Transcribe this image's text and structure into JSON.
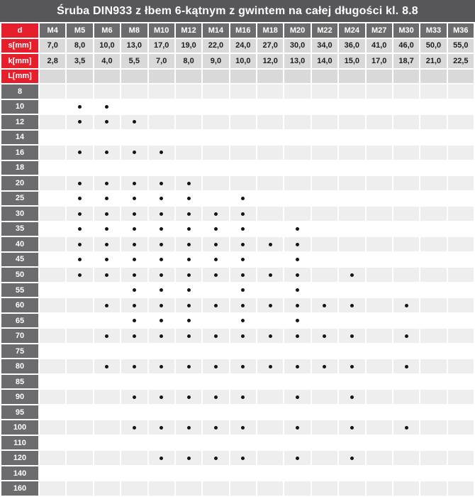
{
  "chart_data": {
    "type": "table",
    "title": "Śruba DIN933 z łbem 6-kątnym z gwintem na całej długości kl. 8.8",
    "corner_label": "d",
    "columns": [
      "M4",
      "M5",
      "M6",
      "M8",
      "M10",
      "M12",
      "M14",
      "M16",
      "M18",
      "M20",
      "M22",
      "M24",
      "M27",
      "M30",
      "M33",
      "M36"
    ],
    "s_row": {
      "label": "s[mm]",
      "values": [
        "7,0",
        "8,0",
        "10,0",
        "13,0",
        "17,0",
        "19,0",
        "22,0",
        "24,0",
        "27,0",
        "30,0",
        "34,0",
        "36,0",
        "41,0",
        "46,0",
        "50,0",
        "55,0"
      ]
    },
    "k_row": {
      "label": "k[mm]",
      "values": [
        "2,8",
        "3,5",
        "4,0",
        "5,5",
        "7,0",
        "8,0",
        "9,0",
        "10,0",
        "12,0",
        "13,0",
        "14,0",
        "15,0",
        "17,0",
        "18,7",
        "21,0",
        "22,5"
      ]
    },
    "length_header_label": "L[mm]",
    "lengths": [
      "8",
      "10",
      "12",
      "14",
      "16",
      "18",
      "20",
      "25",
      "30",
      "35",
      "40",
      "45",
      "50",
      "55",
      "60",
      "65",
      "70",
      "75",
      "80",
      "85",
      "90",
      "95",
      "100",
      "110",
      "120",
      "140",
      "160"
    ],
    "availability": [
      [
        0,
        0,
        0,
        0,
        0,
        0,
        0,
        0,
        0,
        0,
        0,
        0,
        0,
        0,
        0,
        0
      ],
      [
        0,
        1,
        1,
        0,
        0,
        0,
        0,
        0,
        0,
        0,
        0,
        0,
        0,
        0,
        0,
        0
      ],
      [
        0,
        1,
        1,
        1,
        0,
        0,
        0,
        0,
        0,
        0,
        0,
        0,
        0,
        0,
        0,
        0
      ],
      [
        0,
        0,
        0,
        0,
        0,
        0,
        0,
        0,
        0,
        0,
        0,
        0,
        0,
        0,
        0,
        0
      ],
      [
        0,
        1,
        1,
        1,
        1,
        0,
        0,
        0,
        0,
        0,
        0,
        0,
        0,
        0,
        0,
        0
      ],
      [
        0,
        0,
        0,
        0,
        0,
        0,
        0,
        0,
        0,
        0,
        0,
        0,
        0,
        0,
        0,
        0
      ],
      [
        0,
        1,
        1,
        1,
        1,
        1,
        0,
        0,
        0,
        0,
        0,
        0,
        0,
        0,
        0,
        0
      ],
      [
        0,
        1,
        1,
        1,
        1,
        1,
        0,
        1,
        0,
        0,
        0,
        0,
        0,
        0,
        0,
        0
      ],
      [
        0,
        1,
        1,
        1,
        1,
        1,
        1,
        1,
        0,
        0,
        0,
        0,
        0,
        0,
        0,
        0
      ],
      [
        0,
        1,
        1,
        1,
        1,
        1,
        1,
        1,
        0,
        1,
        0,
        0,
        0,
        0,
        0,
        0
      ],
      [
        0,
        1,
        1,
        1,
        1,
        1,
        1,
        1,
        1,
        1,
        0,
        0,
        0,
        0,
        0,
        0
      ],
      [
        0,
        1,
        1,
        1,
        1,
        1,
        1,
        1,
        0,
        1,
        0,
        0,
        0,
        0,
        0,
        0
      ],
      [
        0,
        1,
        1,
        1,
        1,
        1,
        1,
        1,
        1,
        1,
        0,
        1,
        0,
        0,
        0,
        0
      ],
      [
        0,
        0,
        0,
        1,
        1,
        1,
        0,
        1,
        0,
        1,
        0,
        0,
        0,
        0,
        0,
        0
      ],
      [
        0,
        0,
        1,
        1,
        1,
        1,
        1,
        1,
        1,
        1,
        1,
        1,
        0,
        1,
        0,
        0
      ],
      [
        0,
        0,
        0,
        1,
        1,
        1,
        0,
        1,
        0,
        1,
        0,
        0,
        0,
        0,
        0,
        0
      ],
      [
        0,
        0,
        1,
        1,
        1,
        1,
        1,
        1,
        1,
        1,
        1,
        1,
        0,
        1,
        0,
        0
      ],
      [
        0,
        0,
        0,
        0,
        0,
        0,
        0,
        0,
        0,
        0,
        0,
        0,
        0,
        0,
        0,
        0
      ],
      [
        0,
        0,
        1,
        1,
        1,
        1,
        1,
        1,
        1,
        1,
        1,
        1,
        0,
        1,
        0,
        0
      ],
      [
        0,
        0,
        0,
        0,
        0,
        0,
        0,
        0,
        0,
        0,
        0,
        0,
        0,
        0,
        0,
        0
      ],
      [
        0,
        0,
        0,
        1,
        1,
        1,
        1,
        1,
        0,
        1,
        0,
        1,
        0,
        0,
        0,
        0
      ],
      [
        0,
        0,
        0,
        0,
        0,
        0,
        0,
        0,
        0,
        0,
        0,
        0,
        0,
        0,
        0,
        0
      ],
      [
        0,
        0,
        0,
        1,
        1,
        1,
        1,
        1,
        0,
        1,
        0,
        1,
        0,
        1,
        0,
        0
      ],
      [
        0,
        0,
        0,
        0,
        0,
        0,
        0,
        0,
        0,
        0,
        0,
        0,
        0,
        0,
        0,
        0
      ],
      [
        0,
        0,
        0,
        0,
        1,
        1,
        1,
        1,
        0,
        1,
        0,
        1,
        0,
        0,
        0,
        0
      ],
      [
        0,
        0,
        0,
        0,
        0,
        0,
        0,
        0,
        0,
        0,
        0,
        0,
        0,
        0,
        0,
        0
      ],
      [
        0,
        0,
        0,
        0,
        0,
        0,
        0,
        0,
        0,
        0,
        0,
        0,
        0,
        0,
        0,
        0
      ]
    ]
  },
  "colors": {
    "title_bg": "#57575a",
    "header_bg": "#6c6c6e",
    "label_red": "#e5202c",
    "value_bg": "#d9d9d9",
    "stripe_bg": "#eeeeee",
    "row_white": "#ffffff",
    "value_text": "#1d1d1d",
    "dot": "#141414"
  }
}
